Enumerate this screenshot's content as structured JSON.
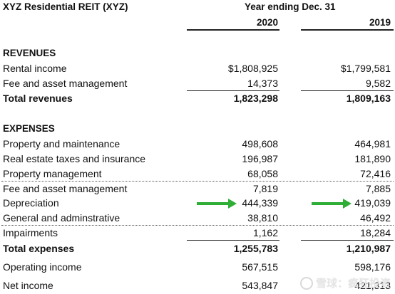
{
  "header": {
    "company": "XYZ Residential REIT (XYZ)",
    "period": "Year ending Dec. 31",
    "year_current": "2020",
    "year_prior": "2019"
  },
  "revenues": {
    "heading": "REVENUES",
    "rows": [
      {
        "label": "Rental income",
        "v2020": "$1,808,925",
        "v2019": "$1,799,581"
      },
      {
        "label": "Fee and asset management",
        "v2020": "14,373",
        "v2019": "9,582"
      }
    ],
    "total": {
      "label": "Total revenues",
      "v2020": "1,823,298",
      "v2019": "1,809,163"
    }
  },
  "expenses": {
    "heading": "EXPENSES",
    "rows": [
      {
        "label": "Property and maintenance",
        "v2020": "498,608",
        "v2019": "464,981"
      },
      {
        "label": "Real estate taxes and insurance",
        "v2020": "196,987",
        "v2019": "181,890"
      },
      {
        "label": "Property management",
        "v2020": "68,058",
        "v2019": "72,416"
      },
      {
        "label": "Fee and asset management",
        "v2020": "7,819",
        "v2019": "7,885"
      },
      {
        "label": "Depreciation",
        "v2020": "444,339",
        "v2019": "419,039"
      },
      {
        "label": "General and adminstrative",
        "v2020": "38,810",
        "v2019": "46,492"
      },
      {
        "label": "Impairments",
        "v2020": "1,162",
        "v2019": "18,284"
      }
    ],
    "total": {
      "label": "Total expenses",
      "v2020": "1,255,783",
      "v2019": "1,210,987"
    }
  },
  "operating_income": {
    "label": "Operating income",
    "v2020": "567,515",
    "v2019": "598,176"
  },
  "net_income": {
    "label": "Net income",
    "v2020": "543,847",
    "v2019": "421,313"
  },
  "watermark": {
    "text": "雪球：疯狂投资",
    "icon": "snowball-logo-icon"
  },
  "colors": {
    "arrow": "#2fae36"
  }
}
